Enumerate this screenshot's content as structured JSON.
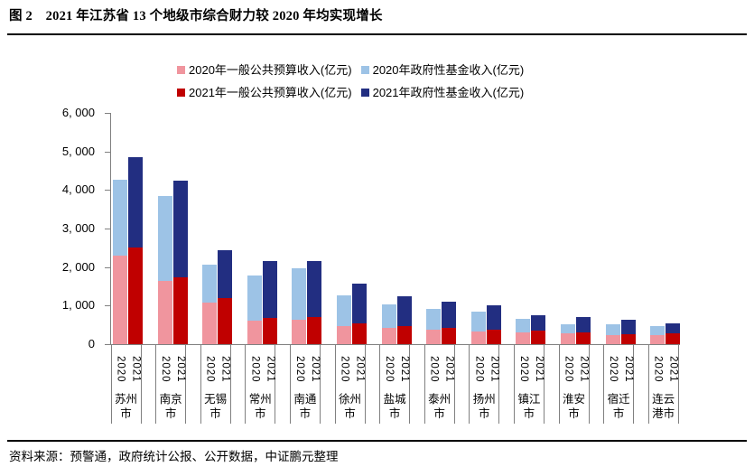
{
  "title": "图 2　2021 年江苏省 13 个地级市综合财力较 2020 年均实现增长",
  "source": "资料来源：预警通，政府统计公报、公开数据，中证鹏元整理",
  "colors": {
    "budget_2020": "#F0959E",
    "fund_2020": "#9DC3E6",
    "budget_2021": "#C00000",
    "fund_2021": "#222E81",
    "axis": "#808080",
    "rule": "#000000"
  },
  "legend": [
    {
      "label": "2020年一般公共预算收入(亿元)",
      "color": "#F0959E"
    },
    {
      "label": "2020年政府性基金收入(亿元)",
      "color": "#9DC3E6"
    },
    {
      "label": "2021年一般公共预算收入(亿元)",
      "color": "#C00000"
    },
    {
      "label": "2021年政府性基金收入(亿元)",
      "color": "#222E81"
    }
  ],
  "chart_data": {
    "type": "bar",
    "stacked": true,
    "grid": false,
    "legend_position": "top",
    "categories": [
      "苏州市",
      "南京市",
      "无锡市",
      "常州市",
      "南通市",
      "徐州市",
      "盐城市",
      "泰州市",
      "扬州市",
      "镇江市",
      "淮安市",
      "宿迁市",
      "连云港市"
    ],
    "sub_categories": [
      "2020",
      "2021"
    ],
    "series": [
      {
        "name": "2020年一般公共预算收入(亿元)",
        "bar": "2020",
        "stack_order": 0,
        "color": "#F0959E",
        "values": [
          2300,
          1640,
          1076,
          617,
          640,
          479,
          418,
          383,
          337,
          316,
          281,
          230,
          240
        ]
      },
      {
        "name": "2020年政府性基金收入(亿元)",
        "bar": "2020",
        "stack_order": 1,
        "color": "#9DC3E6",
        "values": [
          1970,
          2215,
          990,
          1160,
          1320,
          790,
          615,
          530,
          515,
          345,
          240,
          290,
          230
        ]
      },
      {
        "name": "2021年一般公共预算收入(亿元)",
        "bar": "2021",
        "stack_order": 0,
        "color": "#C00000",
        "values": [
          2510,
          1730,
          1200,
          688,
          714,
          531,
          465,
          412,
          366,
          342,
          302,
          260,
          287
        ]
      },
      {
        "name": "2021年政府性基金收入(亿元)",
        "bar": "2021",
        "stack_order": 1,
        "color": "#222E81",
        "values": [
          2330,
          2520,
          1245,
          1460,
          1435,
          1030,
          785,
          690,
          640,
          400,
          395,
          380,
          255
        ]
      }
    ],
    "ylim": [
      0,
      6000
    ],
    "ytick_interval": 1000,
    "ytick_labels": [
      "0",
      "1, 000",
      "2, 000",
      "3, 000",
      "4, 000",
      "5, 000",
      "6, 000"
    ],
    "xlabel": "",
    "ylabel": ""
  }
}
